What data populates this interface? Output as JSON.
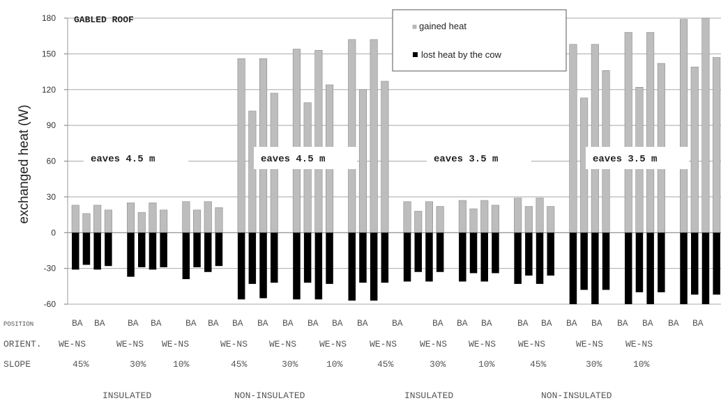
{
  "chart_data": {
    "type": "bar",
    "title": "GABLED ROOF",
    "ylabel": "exchanged heat (W)",
    "ylim": [
      -60,
      180
    ],
    "yticks": [
      180,
      150,
      120,
      90,
      60,
      30,
      0,
      -30,
      -60
    ],
    "legend": {
      "placement": "top-center",
      "entries": [
        {
          "label": "gained heat",
          "color": "#bdbdbd"
        },
        {
          "label": "lost heat by the cow",
          "color": "#000000"
        }
      ]
    },
    "series": [
      {
        "name": "gained heat",
        "values": [
          23,
          16,
          23,
          19,
          25,
          17,
          25,
          19,
          26,
          19,
          26,
          21,
          146,
          102,
          146,
          117,
          154,
          109,
          153,
          124,
          162,
          120,
          162,
          127,
          26,
          18,
          26,
          22,
          27,
          20,
          27,
          23,
          29,
          22,
          29,
          22,
          158,
          113,
          158,
          136,
          168,
          122,
          168,
          142,
          179,
          139,
          180,
          147
        ]
      },
      {
        "name": "lost heat by the cow",
        "values": [
          -31,
          -27,
          -31,
          -28,
          -37,
          -29,
          -31,
          -29,
          -39,
          -29,
          -33,
          -28,
          -56,
          -43,
          -55,
          -42,
          -56,
          -42,
          -56,
          -43,
          -57,
          -42,
          -57,
          -42,
          -41,
          -33,
          -41,
          -33,
          -41,
          -34,
          -41,
          -34,
          -43,
          -36,
          -43,
          -36,
          -60,
          -48,
          -60,
          -48,
          -60,
          -50,
          -60,
          -50,
          -60,
          -52,
          -60,
          -52
        ]
      }
    ],
    "annotations": [
      "eaves 4.5 m",
      "eaves 4.5 m",
      "eaves 3.5 m",
      "eaves 3.5 m"
    ],
    "category_rows": {
      "position_label": "POSITION",
      "position": [
        "BA",
        "BA",
        "BA",
        "BA",
        "BA",
        "BA",
        "BA",
        "BA",
        "BA",
        "BA",
        "BA",
        "BA",
        "BA",
        "BA",
        "BA",
        "BA",
        "BA",
        "BA",
        "BA",
        "BA",
        "BA",
        "BA",
        "BA",
        "BA",
        "BA",
        "BA",
        "BA"
      ],
      "orient_label": "ORIENT.",
      "orient": [
        "WE-NS",
        "WE-NS",
        "WE-NS",
        "WE-NS",
        "WE-NS",
        "WE-NS",
        "WE-NS",
        "WE-NS",
        "WE-NS",
        "WE-NS",
        "WE-NS",
        "WE-NS",
        "WE-NS"
      ],
      "slope_label": "SLOPE",
      "slope": [
        "45%",
        "30%",
        "10%",
        "45%",
        "30%",
        "10%",
        "45%",
        "30%",
        "10%",
        "45%",
        "30%",
        "10%"
      ],
      "insulation": [
        "INSULATED",
        "NON-INSULATED",
        "INSULATED",
        "NON-INSULATED"
      ]
    },
    "grid": true
  }
}
